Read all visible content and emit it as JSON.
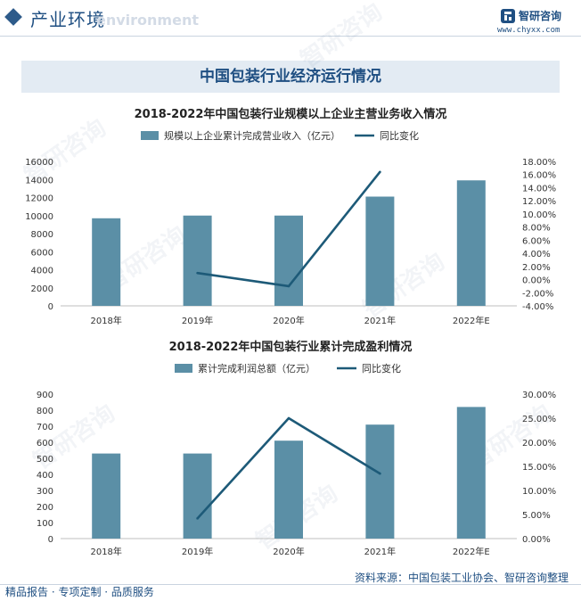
{
  "header": {
    "title": "产业环境",
    "subtitle": "environment",
    "logo_name": "智研咨询",
    "logo_url": "www.chyxx.com"
  },
  "banner": {
    "title": "中国包装行业经济运行情况"
  },
  "watermark": "智研咨询",
  "colors": {
    "bar": "#5b8fa6",
    "line": "#1d5a78",
    "brand": "#1f4f82"
  },
  "chart_data": [
    {
      "type": "bar",
      "title": "2018-2022年中国包装行业规模以上企业主营业务收入情况",
      "categories": [
        "2018年",
        "2019年",
        "2020年",
        "2021年",
        "2022年E"
      ],
      "series": [
        {
          "name": "规模以上企业累计完成营业收入（亿元）",
          "type": "bar",
          "axis": "left",
          "values": [
            9700,
            10000,
            10000,
            12100,
            13900
          ]
        },
        {
          "name": "同比变化",
          "type": "line",
          "axis": "right",
          "values": [
            null,
            1.0,
            -1.0,
            16.4,
            null
          ]
        }
      ],
      "ylim_left": [
        0,
        16000
      ],
      "ylim_right": [
        -4,
        18
      ],
      "yticks_left": [
        "0",
        "2000",
        "4000",
        "6000",
        "8000",
        "10000",
        "12000",
        "14000",
        "16000"
      ],
      "yticks_right": [
        "-4.00%",
        "-2.00%",
        "0.00%",
        "2.00%",
        "4.00%",
        "6.00%",
        "8.00%",
        "10.00%",
        "12.00%",
        "14.00%",
        "16.00%",
        "18.00%"
      ],
      "legend": "top"
    },
    {
      "type": "bar",
      "title": "2018-2022年中国包装行业累计完成盈利情况",
      "categories": [
        "2018年",
        "2019年",
        "2020年",
        "2021年",
        "2022年E"
      ],
      "series": [
        {
          "name": "累计完成利润总额（亿元）",
          "type": "bar",
          "axis": "left",
          "values": [
            530,
            530,
            610,
            710,
            820
          ]
        },
        {
          "name": "同比变化",
          "type": "line",
          "axis": "right",
          "values": [
            null,
            4.2,
            25.0,
            13.5,
            null
          ]
        }
      ],
      "ylim_left": [
        0,
        900
      ],
      "ylim_right": [
        0,
        30
      ],
      "yticks_left": [
        "0",
        "100",
        "200",
        "300",
        "400",
        "500",
        "600",
        "700",
        "800",
        "900"
      ],
      "yticks_right": [
        "0.00%",
        "5.00%",
        "10.00%",
        "15.00%",
        "20.00%",
        "25.00%",
        "30.00%"
      ],
      "legend": "top"
    }
  ],
  "footer": {
    "source": "资料来源：中国包装工业协会、智研咨询整理",
    "tagline": "精品报告 · 专项定制 · 品质服务"
  }
}
